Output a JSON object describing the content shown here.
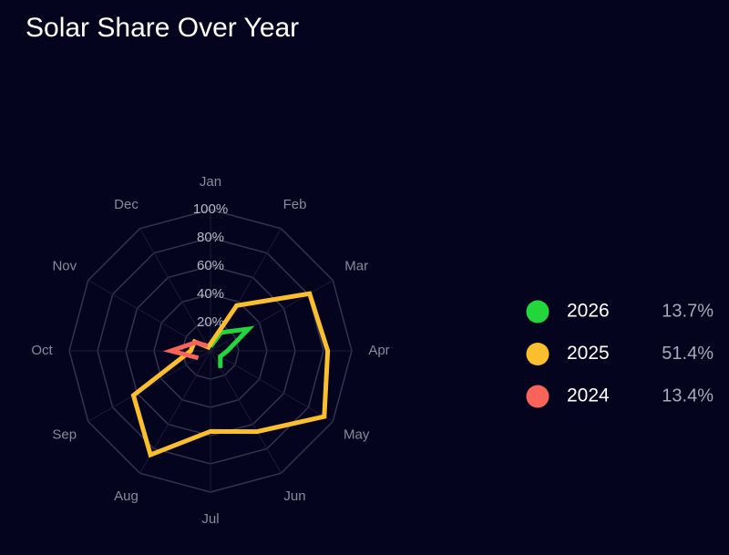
{
  "chart_data": {
    "type": "radar",
    "title": "Solar Share Over Year",
    "categories": [
      "Jan",
      "Feb",
      "Mar",
      "Apr",
      "May",
      "Jun",
      "Jul",
      "Aug",
      "Sep",
      "Oct",
      "Nov",
      "Dec"
    ],
    "rlim": [
      0,
      100
    ],
    "rticks": [
      {
        "value": 20,
        "label": "20%"
      },
      {
        "value": 40,
        "label": "40%"
      },
      {
        "value": 60,
        "label": "60%"
      },
      {
        "value": 80,
        "label": "80%"
      },
      {
        "value": 100,
        "label": "100%"
      }
    ],
    "grid": true,
    "legend": "right",
    "series": [
      {
        "name": "2026",
        "color": "#22d63c",
        "share_label": "13.7%",
        "values": [
          3,
          15,
          31,
          12,
          8,
          14,
          null,
          null,
          null,
          null,
          null,
          null
        ]
      },
      {
        "name": "2025",
        "color": "#fbbf2e",
        "share_label": "51.4%",
        "values": [
          5,
          37,
          81,
          83,
          93,
          66,
          57,
          85,
          63,
          14,
          13,
          3
        ]
      },
      {
        "name": "2024",
        "color": "#f8645a",
        "share_label": "13.4%",
        "values": [
          null,
          null,
          null,
          null,
          null,
          null,
          null,
          null,
          10,
          28,
          12,
          4
        ]
      }
    ]
  }
}
